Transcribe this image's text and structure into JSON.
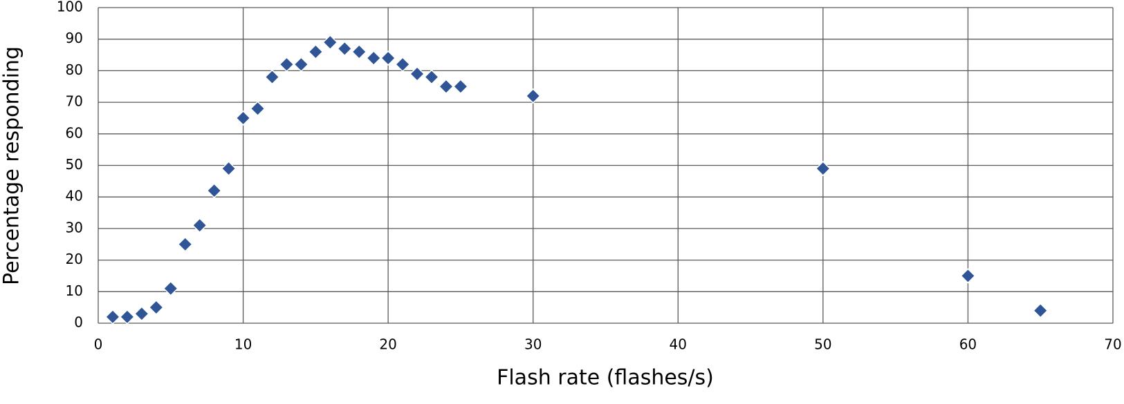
{
  "chart_data": {
    "type": "scatter",
    "x_label": "Flash rate (flashes/s)",
    "y_label": "Percentage responding",
    "series": [
      {
        "color": "#2f5597",
        "x": [
          1,
          2,
          3,
          4,
          5,
          6,
          7,
          8,
          9,
          10,
          11,
          12,
          13,
          14,
          15,
          16,
          17,
          18,
          19,
          20,
          21,
          22,
          23,
          24,
          25,
          30,
          50,
          60,
          65
        ],
        "values": [
          2,
          2,
          3,
          5,
          11,
          25,
          31,
          42,
          49,
          65,
          68,
          78,
          82,
          82,
          86,
          89,
          87,
          86,
          84,
          84,
          82,
          79,
          78,
          75,
          75,
          72,
          49,
          15,
          4
        ]
      }
    ],
    "xlim": [
      0,
      70
    ],
    "xticks": [
      0,
      10,
      20,
      30,
      40,
      50,
      60,
      70
    ],
    "ylim": [
      0,
      100
    ],
    "yticks": [
      0,
      10,
      20,
      30,
      40,
      50,
      60,
      70,
      80,
      90,
      100
    ],
    "grid": true
  }
}
